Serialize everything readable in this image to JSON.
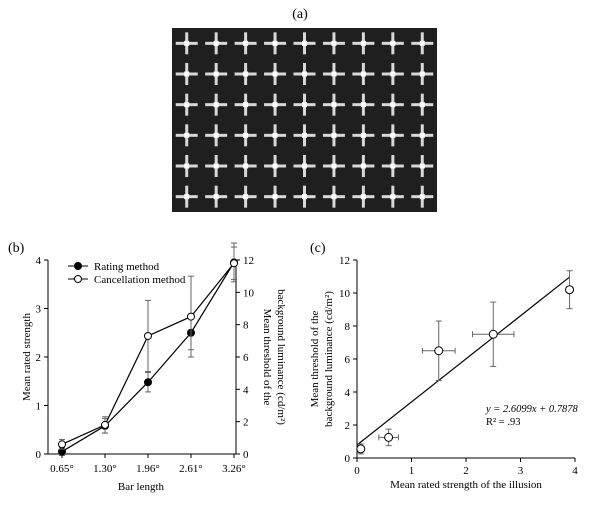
{
  "panels": {
    "a": {
      "label": "(a)",
      "grid_rows": 6,
      "grid_cols": 9,
      "background": "#1f1f1f",
      "cross_color": "#d8d8d8"
    },
    "b": {
      "label": "(b)"
    },
    "c": {
      "label": "(c)"
    }
  },
  "chart_data": [
    {
      "panel": "b",
      "type": "line",
      "categories": [
        "0.65°",
        "1.30°",
        "1.96°",
        "2.61°",
        "3.26°"
      ],
      "xlabel": "Bar length",
      "ylabel_left": "Mean rated strength",
      "ylabel_right_lines": [
        "Mean threshold of the",
        "background luminance (cd/m²)"
      ],
      "ylim_left": [
        0,
        4
      ],
      "ylim_right": [
        0,
        12
      ],
      "yticks_left": [
        0,
        1,
        2,
        3,
        4
      ],
      "yticks_right": [
        0,
        2,
        4,
        6,
        8,
        10,
        12
      ],
      "legend_position": "top-left",
      "series": [
        {
          "name": "Rating method",
          "marker": "filled",
          "axis": "left",
          "values": [
            0.05,
            0.58,
            1.48,
            2.5,
            3.95
          ],
          "errors": [
            0.08,
            0.15,
            0.2,
            0.35,
            0.4
          ]
        },
        {
          "name": "Cancellation method",
          "marker": "open",
          "axis": "right",
          "values": [
            0.6,
            1.8,
            7.3,
            8.5,
            11.8
          ],
          "errors": [
            0.3,
            0.5,
            2.2,
            2.5,
            1.0
          ]
        }
      ]
    },
    {
      "panel": "c",
      "type": "scatter",
      "xlabel": "Mean rated strength of the illusion",
      "ylabel_lines": [
        "Mean threshold of the",
        "background luminance (cd/m²)"
      ],
      "xlim": [
        0,
        4
      ],
      "ylim": [
        0,
        12
      ],
      "xticks": [
        0,
        1,
        2,
        3,
        4
      ],
      "yticks": [
        0,
        2,
        4,
        6,
        8,
        10,
        12
      ],
      "points": [
        {
          "x": 0.07,
          "y": 0.55,
          "xerr": 0.05,
          "yerr": 0.3
        },
        {
          "x": 0.58,
          "y": 1.25,
          "xerr": 0.18,
          "yerr": 0.5
        },
        {
          "x": 1.5,
          "y": 6.5,
          "xerr": 0.3,
          "yerr": 1.8
        },
        {
          "x": 2.5,
          "y": 7.5,
          "xerr": 0.38,
          "yerr": 1.95
        },
        {
          "x": 3.9,
          "y": 10.2,
          "xerr": 0.06,
          "yerr": 1.15
        }
      ],
      "fit": {
        "slope": 2.6099,
        "intercept": 0.7878,
        "x_range": [
          0,
          3.9
        ]
      },
      "equation_text": "y = 2.6099x + 0.7878",
      "r2_text": "R² = .93"
    }
  ]
}
